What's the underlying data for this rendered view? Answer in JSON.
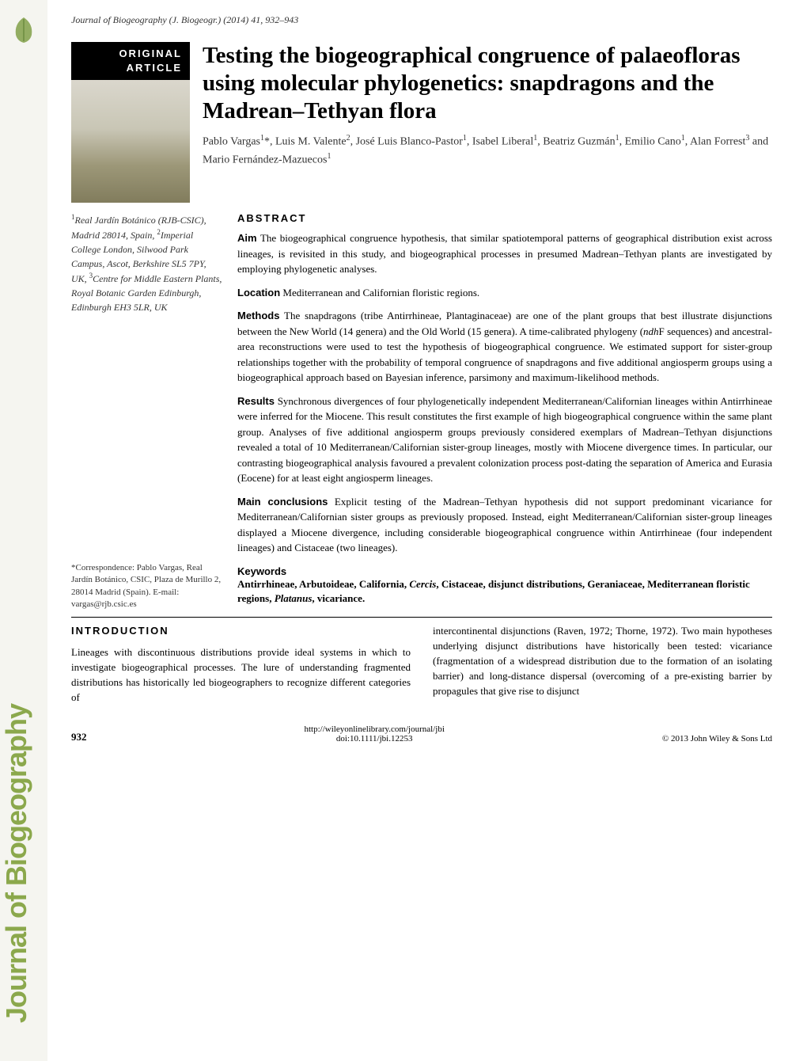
{
  "journal_header": "Journal of Biogeography (J. Biogeogr.) (2014) 41, 932–943",
  "badge": {
    "line1": "ORIGINAL",
    "line2": "ARTICLE"
  },
  "article_title": "Testing the biogeographical congruence of palaeofloras using molecular phylogenetics: snapdragons and the Madrean–Tethyan flora",
  "authors_html": "Pablo Vargas<sup>1</sup>*, Luis M. Valente<sup>2</sup>, José Luis Blanco-Pastor<sup>1</sup>, Isabel Liberal<sup>1</sup>, Beatriz Guzmán<sup>1</sup>, Emilio Cano<sup>1</sup>, Alan Forrest<sup>3</sup> and Mario Fernández-Mazuecos<sup>1</sup>",
  "affiliations_html": "<sup>1</sup>Real Jardín Botánico (RJB-CSIC), Madrid 28014, Spain, <sup>2</sup>Imperial College London, Silwood Park Campus, Ascot, Berkshire SL5 7PY, UK, <sup>3</sup>Centre for Middle Eastern Plants, Royal Botanic Garden Edinburgh, Edinburgh EH3 5LR, UK",
  "abstract_label": "ABSTRACT",
  "abstract": {
    "aim": "<b>Aim</b> The biogeographical congruence hypothesis, that similar spatiotemporal patterns of geographical distribution exist across lineages, is revisited in this study, and biogeographical processes in presumed Madrean–Tethyan plants are investigated by employing phylogenetic analyses.",
    "location": "<b>Location</b> Mediterranean and Californian floristic regions.",
    "methods": "<b>Methods</b> The snapdragons (tribe Antirrhineae, Plantaginaceae) are one of the plant groups that best illustrate disjunctions between the New World (14 genera) and the Old World (15 genera). A time-calibrated phylogeny (<i>ndh</i>F sequences) and ancestral-area reconstructions were used to test the hypothesis of biogeographical congruence. We estimated support for sister-group relationships together with the probability of temporal congruence of snapdragons and five additional angiosperm groups using a biogeographical approach based on Bayesian inference, parsimony and maximum-likelihood methods.",
    "results": "<b>Results</b> Synchronous divergences of four phylogenetically independent Mediterranean/Californian lineages within Antirrhineae were inferred for the Miocene. This result constitutes the first example of high biogeographical congruence within the same plant group. Analyses of five additional angiosperm groups previously considered exemplars of Madrean–Tethyan disjunctions revealed a total of 10 Mediterranean/Californian sister-group lineages, mostly with Miocene divergence times. In particular, our contrasting biogeographical analysis favoured a prevalent colonization process post-dating the separation of America and Eurasia (Eocene) for at least eight angiosperm lineages.",
    "main_conclusions": "<b>Main conclusions</b> Explicit testing of the Madrean–Tethyan hypothesis did not support predominant vicariance for Mediterranean/Californian sister groups as previously proposed. Instead, eight Mediterranean/Californian sister-group lineages displayed a Miocene divergence, including considerable biogeographical congruence within Antirrhineae (four independent lineages) and Cistaceae (two lineages)."
  },
  "keywords_label": "Keywords",
  "keywords": "Antirrhineae, Arbutoideae, California, Cercis, Cistaceae, disjunct distributions, Geraniaceae, Mediterranean floristic regions, Platanus, vicariance.",
  "correspondence": "*Correspondence: Pablo Vargas, Real Jardín Botánico, CSIC, Plaza de Murillo 2, 28014 Madrid (Spain).\nE-mail: vargas@rjb.csic.es",
  "introduction_label": "INTRODUCTION",
  "intro_col1": "Lineages with discontinuous distributions provide ideal systems in which to investigate biogeographical processes. The lure of understanding fragmented distributions has historically led biogeographers to recognize different categories of",
  "intro_col2": "intercontinental disjunctions (Raven, 1972; Thorne, 1972). Two main hypotheses underlying disjunct distributions have historically been tested: vicariance (fragmentation of a widespread distribution due to the formation of an isolating barrier) and long-distance dispersal (overcoming of a pre-existing barrier by propagules that give rise to disjunct",
  "footer": {
    "page": "932",
    "url": "http://wileyonlinelibrary.com/journal/jbi",
    "doi": "doi:10.1111/jbi.12253",
    "copyright": "© 2013 John Wiley & Sons Ltd"
  },
  "sidebar": {
    "vertical_label": "Journal of Biogeography",
    "title_color": "#8ba84c",
    "icon_bg": "#7a9b3f"
  }
}
